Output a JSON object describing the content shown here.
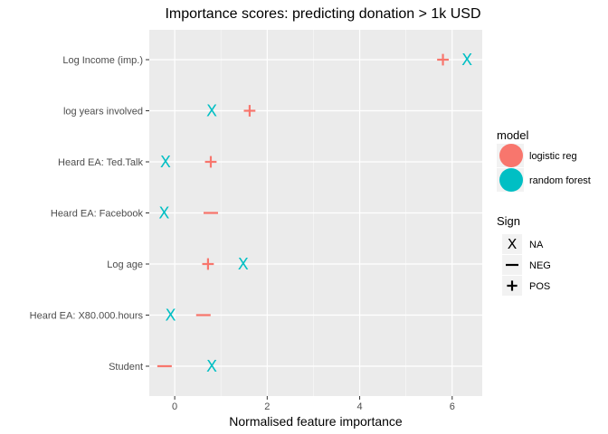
{
  "chart_data": {
    "type": "scatter",
    "title": "Importance scores: predicting donation > 1k USD",
    "xlabel": "Normalised feature importance",
    "ylabel": "",
    "xlim": [
      -0.55,
      6.65
    ],
    "xticks": [
      0,
      2,
      4,
      6
    ],
    "tick_labels_x": [
      "0",
      "2",
      "4",
      "6"
    ],
    "categories": [
      "Log Income (imp.)",
      "log years involved",
      "Heard EA: Ted.Talk",
      "Heard EA: Facebook",
      "Log age",
      "Heard EA: X80.000.hours",
      "Student"
    ],
    "grid": true,
    "series": [
      {
        "name": "logistic reg",
        "color": "#F8766D",
        "points": [
          {
            "category": "Log Income (imp.)",
            "x": 5.8,
            "sign": "POS"
          },
          {
            "category": "log years involved",
            "x": 1.62,
            "sign": "POS"
          },
          {
            "category": "Heard EA: Ted.Talk",
            "x": 0.78,
            "sign": "POS"
          },
          {
            "category": "Heard EA: Facebook",
            "x": 0.78,
            "sign": "NEG"
          },
          {
            "category": "Log age",
            "x": 0.72,
            "sign": "POS"
          },
          {
            "category": "Heard EA: X80.000.hours",
            "x": 0.62,
            "sign": "NEG"
          },
          {
            "category": "Student",
            "x": -0.22,
            "sign": "NEG"
          }
        ]
      },
      {
        "name": "random forest",
        "color": "#00BFC4",
        "points": [
          {
            "category": "Log Income (imp.)",
            "x": 6.32,
            "sign": "NA"
          },
          {
            "category": "log years involved",
            "x": 0.8,
            "sign": "NA"
          },
          {
            "category": "Heard EA: Ted.Talk",
            "x": -0.2,
            "sign": "NA"
          },
          {
            "category": "Heard EA: Facebook",
            "x": -0.23,
            "sign": "NA"
          },
          {
            "category": "Log age",
            "x": 1.48,
            "sign": "NA"
          },
          {
            "category": "Heard EA: X80.000.hours",
            "x": -0.09,
            "sign": "NA"
          },
          {
            "category": "Student",
            "x": 0.8,
            "sign": "NA"
          }
        ]
      }
    ],
    "legends": [
      {
        "title": "model",
        "position": "right",
        "items": [
          {
            "label": "logistic reg",
            "color": "#F8766D"
          },
          {
            "label": "random forest",
            "color": "#00BFC4"
          }
        ]
      },
      {
        "title": "Sign",
        "position": "right",
        "items": [
          {
            "label": "NA",
            "symbol": "x"
          },
          {
            "label": "NEG",
            "symbol": "minus"
          },
          {
            "label": "POS",
            "symbol": "plus"
          }
        ]
      }
    ]
  }
}
